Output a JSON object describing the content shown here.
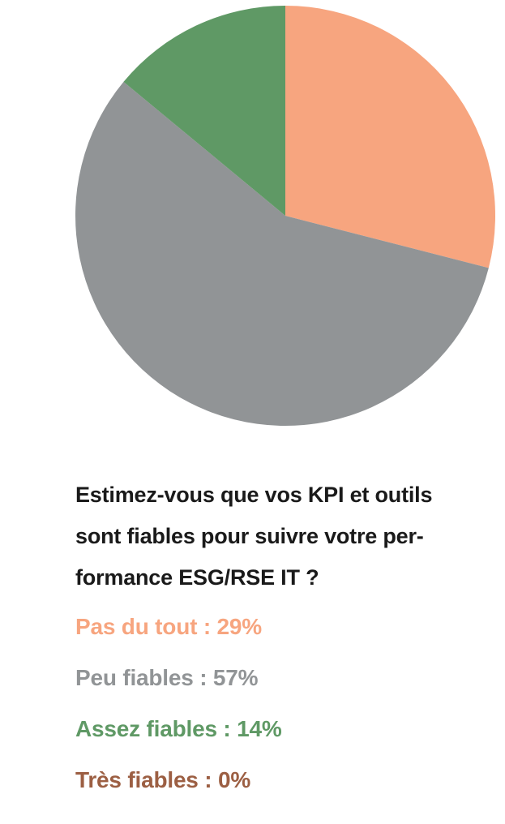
{
  "chart_data": {
    "type": "pie",
    "title": "Estimez-vous que vos KPI et outils sont fiables pour suivre votre performance ESG/RSE IT ?",
    "title_lines": [
      "Estimez-vous que vos KPI et outils",
      "sont fiables pour suivre votre per-",
      "formance ESG/RSE IT ?"
    ],
    "slices": [
      {
        "label": "Pas du tout",
        "value": 29,
        "legend_text": "Pas du tout : 29%",
        "color": "#f7a57f"
      },
      {
        "label": "Peu fiables",
        "value": 57,
        "legend_text": "Peu fiables : 57%",
        "color": "#919496"
      },
      {
        "label": "Assez fiables",
        "value": 14,
        "legend_text": "Assez fiables : 14%",
        "color": "#5f9965"
      },
      {
        "label": "Très fiables",
        "value": 0,
        "legend_text": "Très fiables : 0%",
        "color": "#9c5f43"
      }
    ]
  }
}
